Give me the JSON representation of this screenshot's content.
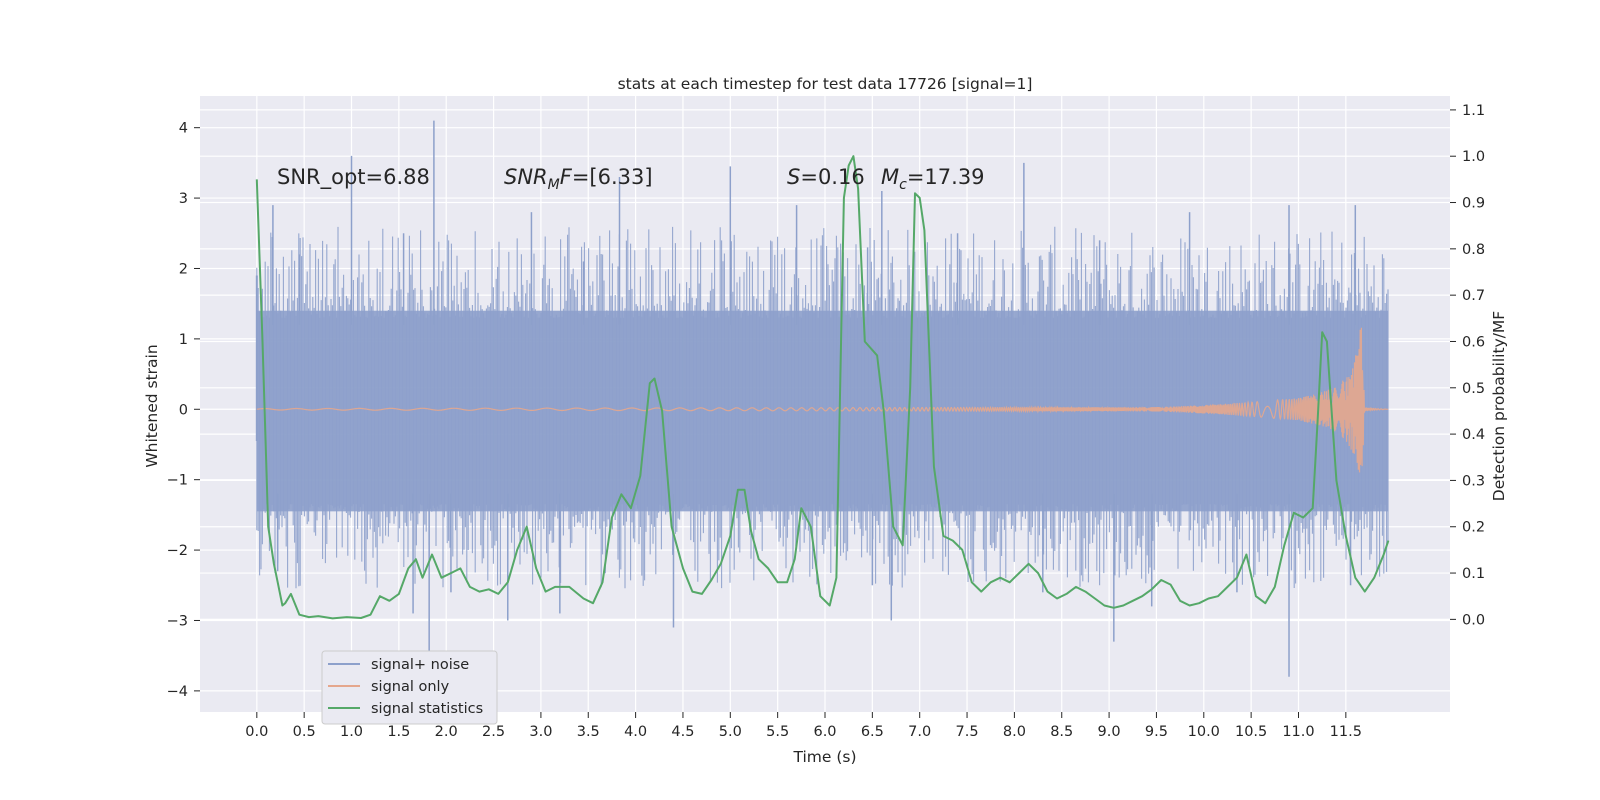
{
  "chart_data": {
    "type": "line",
    "title": "stats at each timestep for test data 17726 [signal=1]",
    "xlabel": "Time (s)",
    "ylabel_left": "Whitened strain",
    "ylabel_right": "Detection probability/MF",
    "xlim": [
      -0.6,
      12.6
    ],
    "ylim_left": [
      -4.3,
      4.45
    ],
    "ylim_right": [
      -0.2,
      1.13
    ],
    "x_ticks": [
      0.0,
      0.5,
      1.0,
      1.5,
      2.0,
      2.5,
      3.0,
      3.5,
      4.0,
      4.5,
      5.0,
      5.5,
      6.0,
      6.5,
      7.0,
      7.5,
      8.0,
      8.5,
      9.0,
      9.5,
      10.0,
      10.5,
      11.0,
      11.5
    ],
    "x_tick_labels": [
      "0.0",
      "0.5",
      "1.0",
      "1.5",
      "2.0",
      "2.5",
      "3.0",
      "3.5",
      "4.0",
      "4.5",
      "5.0",
      "5.5",
      "6.0",
      "6.5",
      "7.0",
      "7.5",
      "8.0",
      "8.5",
      "9.0",
      "9.5",
      "10.0",
      "10.5",
      "11.0",
      "11.5"
    ],
    "y_left_ticks": [
      -4,
      -3,
      -2,
      -1,
      0,
      1,
      2,
      3,
      4
    ],
    "y_left_tick_labels": [
      "−4",
      "−3",
      "−2",
      "−1",
      "0",
      "1",
      "2",
      "3",
      "4"
    ],
    "y_right_ticks": [
      0.0,
      0.1,
      0.2,
      0.3,
      0.4,
      0.5,
      0.6,
      0.7,
      0.8,
      0.9,
      1.0,
      1.1
    ],
    "y_right_tick_labels": [
      "0.0",
      "0.1",
      "0.2",
      "0.3",
      "0.4",
      "0.5",
      "0.6",
      "0.7",
      "0.8",
      "0.9",
      "1.0",
      "1.1"
    ],
    "grid": true,
    "legend_position": "lower-left",
    "annotations": [
      {
        "text": "SNR_opt=6.88",
        "x": 0.2,
        "y": 3.3
      },
      {
        "text": "SNR_MF=[6.33]",
        "x": 2.6,
        "y": 3.3
      },
      {
        "text": "S=0.16",
        "x": 5.6,
        "y": 3.3
      },
      {
        "text": "M_c=17.39",
        "x": 6.6,
        "y": 3.3
      }
    ],
    "series": [
      {
        "name": "signal+ noise",
        "axis": "left",
        "style": "noise_band",
        "color": "#8da0cb",
        "x_range": [
          0.0,
          11.95
        ],
        "band": [
          -1.45,
          1.4
        ],
        "spikes_up": [
          {
            "x": 0.17,
            "y": 2.9
          },
          {
            "x": 0.45,
            "y": 2.2
          },
          {
            "x": 1.0,
            "y": 3.6
          },
          {
            "x": 1.55,
            "y": 2.5
          },
          {
            "x": 1.87,
            "y": 4.1
          },
          {
            "x": 2.9,
            "y": 2.8
          },
          {
            "x": 3.45,
            "y": 2.1
          },
          {
            "x": 3.83,
            "y": 3.3
          },
          {
            "x": 5.0,
            "y": 3.45
          },
          {
            "x": 5.7,
            "y": 2.9
          },
          {
            "x": 6.45,
            "y": 2.3
          },
          {
            "x": 6.6,
            "y": 3.1
          },
          {
            "x": 7.4,
            "y": 2.5
          },
          {
            "x": 8.1,
            "y": 3.5
          },
          {
            "x": 8.9,
            "y": 2.4
          },
          {
            "x": 9.85,
            "y": 2.8
          },
          {
            "x": 10.9,
            "y": 2.9
          },
          {
            "x": 11.6,
            "y": 2.9
          }
        ],
        "spikes_down": [
          {
            "x": 0.22,
            "y": -2.3
          },
          {
            "x": 1.65,
            "y": -2.9
          },
          {
            "x": 1.82,
            "y": -3.5
          },
          {
            "x": 2.05,
            "y": -2.6
          },
          {
            "x": 2.65,
            "y": -3.0
          },
          {
            "x": 3.2,
            "y": -2.9
          },
          {
            "x": 4.4,
            "y": -3.1
          },
          {
            "x": 6.5,
            "y": -2.5
          },
          {
            "x": 6.7,
            "y": -3.0
          },
          {
            "x": 8.3,
            "y": -2.6
          },
          {
            "x": 9.05,
            "y": -3.3
          },
          {
            "x": 9.45,
            "y": -2.8
          },
          {
            "x": 10.35,
            "y": -2.6
          },
          {
            "x": 10.9,
            "y": -3.8
          },
          {
            "x": 11.55,
            "y": -2.5
          }
        ]
      },
      {
        "name": "signal only",
        "axis": "left",
        "style": "chirp",
        "color": "#e5a78d",
        "x": [
          0.0,
          9.5,
          10.0,
          10.5,
          11.0,
          11.2,
          11.4,
          11.5,
          11.55,
          11.6,
          11.64,
          11.66,
          11.7,
          11.95
        ],
        "amplitude": [
          0.01,
          0.03,
          0.06,
          0.1,
          0.16,
          0.22,
          0.32,
          0.45,
          0.55,
          0.75,
          1.0,
          1.3,
          0.02,
          0.0
        ]
      },
      {
        "name": "signal statistics",
        "axis": "right",
        "style": "line",
        "color": "#55a868",
        "x": [
          0.0,
          0.06,
          0.12,
          0.18,
          0.22,
          0.27,
          0.3,
          0.36,
          0.45,
          0.55,
          0.65,
          0.8,
          0.95,
          1.1,
          1.2,
          1.3,
          1.4,
          1.5,
          1.6,
          1.68,
          1.75,
          1.85,
          1.95,
          2.05,
          2.15,
          2.25,
          2.35,
          2.45,
          2.55,
          2.65,
          2.75,
          2.85,
          2.95,
          3.05,
          3.15,
          3.3,
          3.45,
          3.55,
          3.65,
          3.75,
          3.85,
          3.95,
          4.05,
          4.15,
          4.2,
          4.28,
          4.38,
          4.5,
          4.6,
          4.7,
          4.8,
          4.9,
          5.0,
          5.08,
          5.15,
          5.22,
          5.3,
          5.4,
          5.5,
          5.6,
          5.68,
          5.75,
          5.85,
          5.95,
          6.05,
          6.12,
          6.2,
          6.25,
          6.3,
          6.35,
          6.42,
          6.55,
          6.62,
          6.72,
          6.82,
          6.9,
          6.95,
          7.0,
          7.05,
          7.15,
          7.25,
          7.35,
          7.45,
          7.55,
          7.65,
          7.75,
          7.85,
          7.95,
          8.05,
          8.15,
          8.25,
          8.35,
          8.45,
          8.55,
          8.65,
          8.75,
          8.85,
          8.95,
          9.05,
          9.15,
          9.25,
          9.35,
          9.45,
          9.55,
          9.65,
          9.75,
          9.85,
          9.95,
          10.05,
          10.15,
          10.25,
          10.35,
          10.45,
          10.55,
          10.65,
          10.75,
          10.85,
          10.95,
          11.05,
          11.15,
          11.2,
          11.25,
          11.3,
          11.35,
          11.4,
          11.5,
          11.6,
          11.7,
          11.8,
          11.9,
          11.95
        ],
        "values": [
          0.95,
          0.6,
          0.2,
          0.12,
          0.08,
          0.03,
          0.035,
          0.055,
          0.01,
          0.005,
          0.007,
          0.002,
          0.005,
          0.003,
          0.01,
          0.05,
          0.04,
          0.055,
          0.11,
          0.13,
          0.09,
          0.14,
          0.09,
          0.1,
          0.11,
          0.07,
          0.06,
          0.065,
          0.055,
          0.08,
          0.15,
          0.2,
          0.11,
          0.06,
          0.07,
          0.07,
          0.045,
          0.035,
          0.08,
          0.22,
          0.27,
          0.24,
          0.31,
          0.51,
          0.52,
          0.45,
          0.2,
          0.11,
          0.06,
          0.055,
          0.085,
          0.12,
          0.18,
          0.28,
          0.28,
          0.19,
          0.13,
          0.11,
          0.08,
          0.08,
          0.13,
          0.24,
          0.2,
          0.05,
          0.03,
          0.09,
          0.91,
          0.98,
          1.0,
          0.93,
          0.6,
          0.57,
          0.45,
          0.2,
          0.16,
          0.5,
          0.92,
          0.91,
          0.84,
          0.33,
          0.18,
          0.17,
          0.15,
          0.08,
          0.06,
          0.08,
          0.09,
          0.08,
          0.1,
          0.12,
          0.1,
          0.06,
          0.045,
          0.055,
          0.07,
          0.06,
          0.045,
          0.03,
          0.025,
          0.03,
          0.04,
          0.05,
          0.065,
          0.085,
          0.075,
          0.04,
          0.03,
          0.035,
          0.045,
          0.05,
          0.07,
          0.09,
          0.14,
          0.05,
          0.035,
          0.07,
          0.16,
          0.23,
          0.22,
          0.24,
          0.42,
          0.62,
          0.6,
          0.45,
          0.3,
          0.18,
          0.09,
          0.06,
          0.09,
          0.14,
          0.17
        ]
      }
    ]
  }
}
